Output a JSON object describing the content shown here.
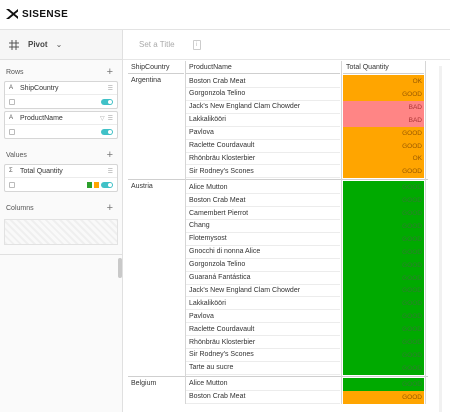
{
  "header": {
    "logo_text": "SISENSE"
  },
  "widget": {
    "type_label": "Pivot",
    "title_placeholder": "Set a Title",
    "info_icon": "i"
  },
  "panel": {
    "rows_label": "Rows",
    "values_label": "Values",
    "columns_label": "Columns",
    "rows_fields": [
      {
        "type": "A",
        "name": "ShipCountry"
      },
      {
        "type": "A",
        "name": "ProductName"
      }
    ],
    "values_fields": [
      {
        "type": "Σ",
        "name": "Total Quantity"
      }
    ],
    "colors": {
      "toggle": "#40c1c7",
      "cond_green": "#2ca02c",
      "cond_orange": "#ffa500"
    }
  },
  "pivot": {
    "headers": [
      "ShipCountry",
      "ProductName",
      "Total Quantity"
    ],
    "status_colors": {
      "OK": "#ffa500",
      "GOOD": "#ffa500",
      "BAD": "#ff8585",
      "GREEN": "#00aa00"
    },
    "groups": [
      {
        "country": "Argentina",
        "rows": [
          {
            "product": "Boston Crab Meat",
            "label": "OK",
            "color": "#ffa500"
          },
          {
            "product": "Gorgonzola Telino",
            "label": "GOOD",
            "color": "#ffa500"
          },
          {
            "product": "Jack's New England Clam Chowder",
            "label": "BAD",
            "color": "#ff8585"
          },
          {
            "product": "Lakkalikööri",
            "label": "BAD",
            "color": "#ff8585"
          },
          {
            "product": "Pavlova",
            "label": "GOOD",
            "color": "#ffa500"
          },
          {
            "product": "Raclette Courdavault",
            "label": "GOOD",
            "color": "#ffa500"
          },
          {
            "product": "Rhönbräu Klosterbier",
            "label": "OK",
            "color": "#ffa500"
          },
          {
            "product": "Sir Rodney's Scones",
            "label": "GOOD",
            "color": "#ffa500"
          }
        ]
      },
      {
        "country": "Austria",
        "rows": [
          {
            "product": "Alice Mutton",
            "label": "GOOD",
            "color": "#00aa00"
          },
          {
            "product": "Boston Crab Meat",
            "label": "GOOD",
            "color": "#00aa00"
          },
          {
            "product": "Camembert Pierrot",
            "label": "GOOD",
            "color": "#00aa00"
          },
          {
            "product": "Chang",
            "label": "GOOD",
            "color": "#00aa00"
          },
          {
            "product": "Flotemysost",
            "label": "GOOD",
            "color": "#00aa00"
          },
          {
            "product": "Gnocchi di nonna Alice",
            "label": "GOOD",
            "color": "#00aa00"
          },
          {
            "product": "Gorgonzola Telino",
            "label": "GOOD",
            "color": "#00aa00"
          },
          {
            "product": "Guaraná Fantástica",
            "label": "GOOD",
            "color": "#00aa00"
          },
          {
            "product": "Jack's New England Clam Chowder",
            "label": "GOOD",
            "color": "#00aa00"
          },
          {
            "product": "Lakkalikööri",
            "label": "GOOD",
            "color": "#00aa00"
          },
          {
            "product": "Pavlova",
            "label": "GOOD",
            "color": "#00aa00"
          },
          {
            "product": "Raclette Courdavault",
            "label": "GOOD",
            "color": "#00aa00"
          },
          {
            "product": "Rhönbräu Klosterbier",
            "label": "GOOD",
            "color": "#00aa00"
          },
          {
            "product": "Sir Rodney's Scones",
            "label": "GOOD",
            "color": "#00aa00"
          },
          {
            "product": "Tarte au sucre",
            "label": "GOOD",
            "color": "#00aa00"
          }
        ]
      },
      {
        "country": "Belgium",
        "rows": [
          {
            "product": "Alice Mutton",
            "label": "GOOD",
            "color": "#00aa00"
          },
          {
            "product": "Boston Crab Meat",
            "label": "GOOD",
            "color": "#ffa500"
          }
        ]
      }
    ]
  }
}
